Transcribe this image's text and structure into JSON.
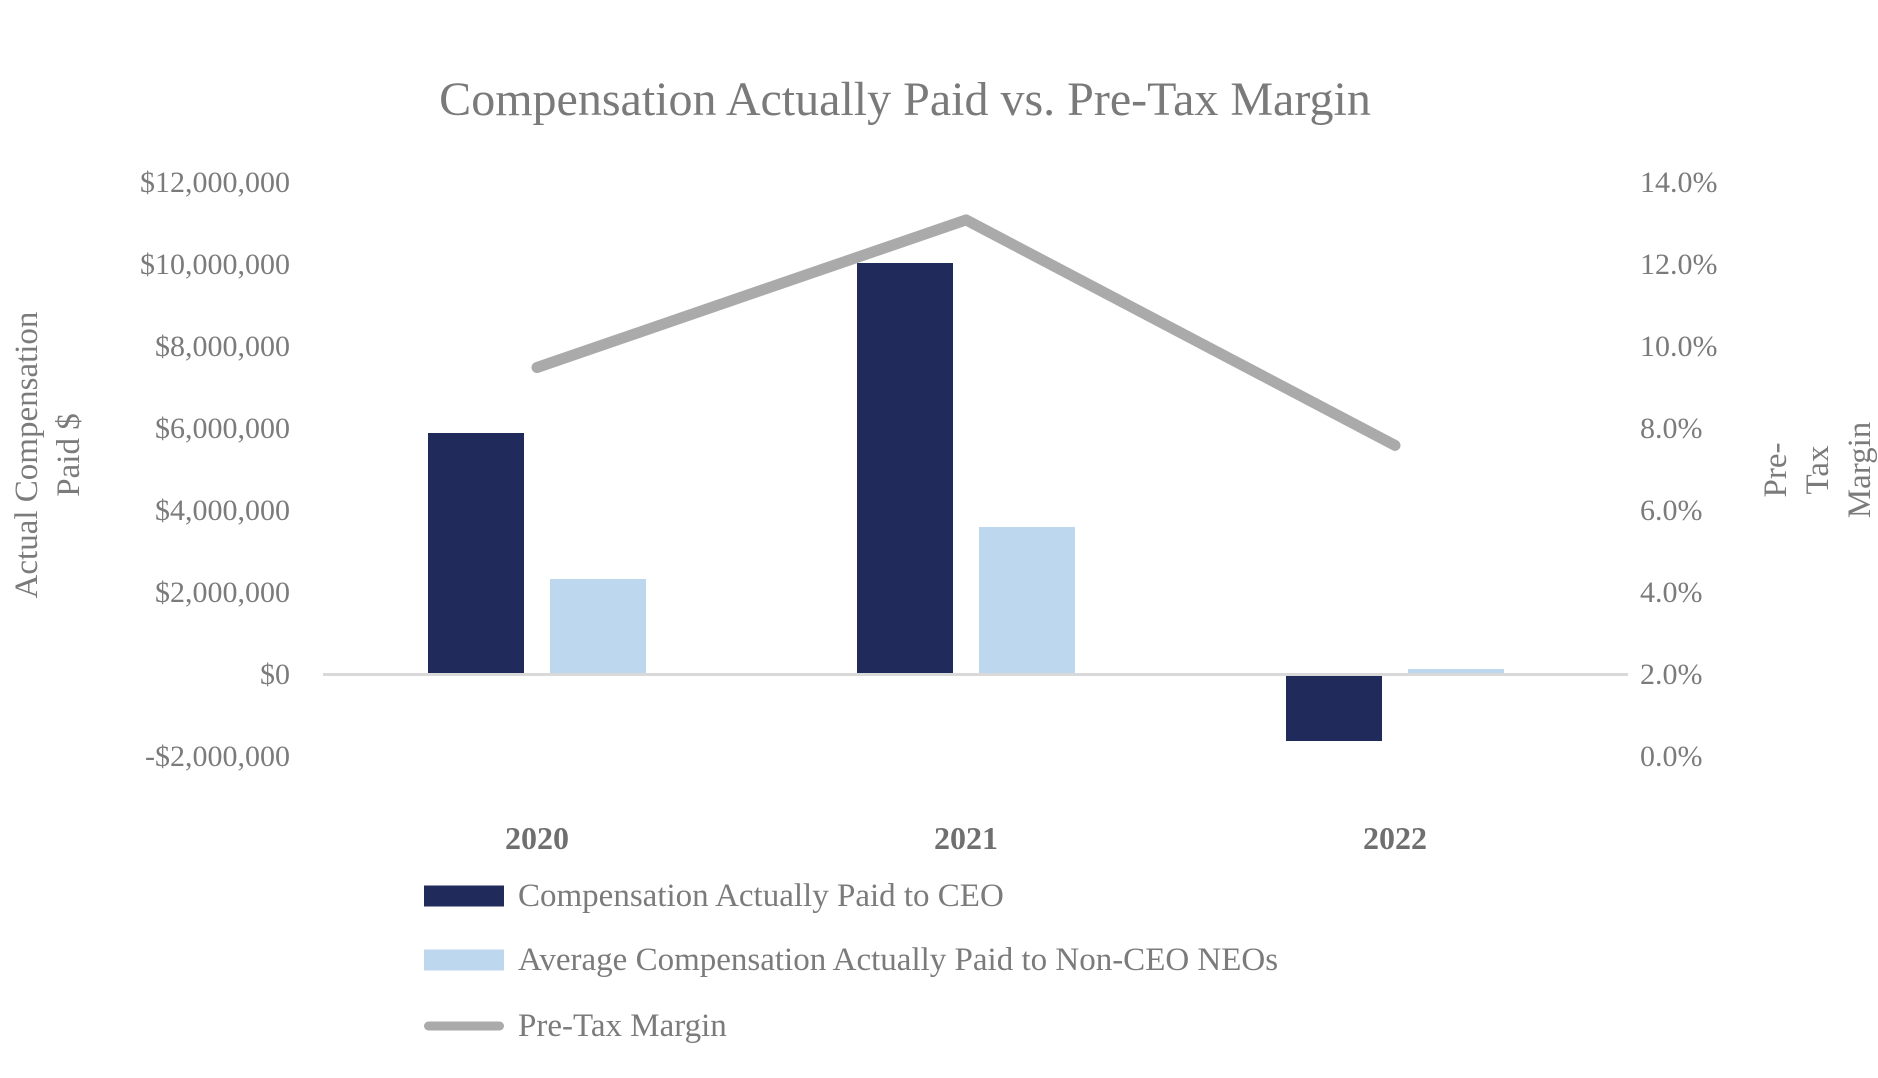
{
  "title": "Compensation Actually Paid vs. Pre-Tax Margin",
  "chart_data": {
    "type": "combo: bar + line",
    "categories": [
      "2020",
      "2021",
      "2022"
    ],
    "series": [
      {
        "name": "Compensation Actually Paid to CEO",
        "type": "bar",
        "axis": "left",
        "color": "#212B5B",
        "values": [
          5900000,
          10050000,
          -1600000
        ]
      },
      {
        "name": "Average Compensation Actually Paid to Non-CEO NEOs",
        "type": "bar",
        "axis": "left",
        "color": "#BDD7EE",
        "values": [
          2350000,
          3600000,
          150000
        ]
      },
      {
        "name": "Pre-Tax Margin",
        "type": "line",
        "axis": "right",
        "color": "#AAAAAA",
        "values": [
          9.5,
          13.1,
          7.6
        ],
        "unit": "%"
      }
    ],
    "left_axis": {
      "title": "Actual Compensation\nPaid $",
      "min": -2000000,
      "max": 12000000,
      "step": 2000000,
      "tick_labels": [
        "$12,000,000",
        "$10,000,000",
        "$8,000,000",
        "$6,000,000",
        "$4,000,000",
        "$2,000,000",
        "$0",
        "-$2,000,000"
      ]
    },
    "right_axis": {
      "title": "Pre-Tax Margin",
      "min": 0,
      "max": 14,
      "step": 2,
      "tick_labels": [
        "14.0%",
        "12.0%",
        "10.0%",
        "8.0%",
        "6.0%",
        "4.0%",
        "2.0%",
        "0.0%"
      ]
    },
    "grid": false,
    "legend_position": "bottom-left"
  },
  "legend": {
    "items": [
      {
        "swatch": "bar",
        "series_index": 0,
        "label": "Compensation Actually Paid to CEO"
      },
      {
        "swatch": "bar",
        "series_index": 1,
        "label": "Average Compensation Actually Paid to Non-CEO NEOs"
      },
      {
        "swatch": "line",
        "series_index": 2,
        "label": "Pre-Tax Margin"
      }
    ]
  },
  "colors": {
    "ceo_bar": "#212B5B",
    "neo_bar": "#BDD7EE",
    "margin_line": "#AAAAAA",
    "axis_line": "#d9d9d9",
    "text": "#7b7b7b",
    "title_text": "#7a7a7a",
    "year_text": "#6f6f6f",
    "background": "#ffffff"
  }
}
